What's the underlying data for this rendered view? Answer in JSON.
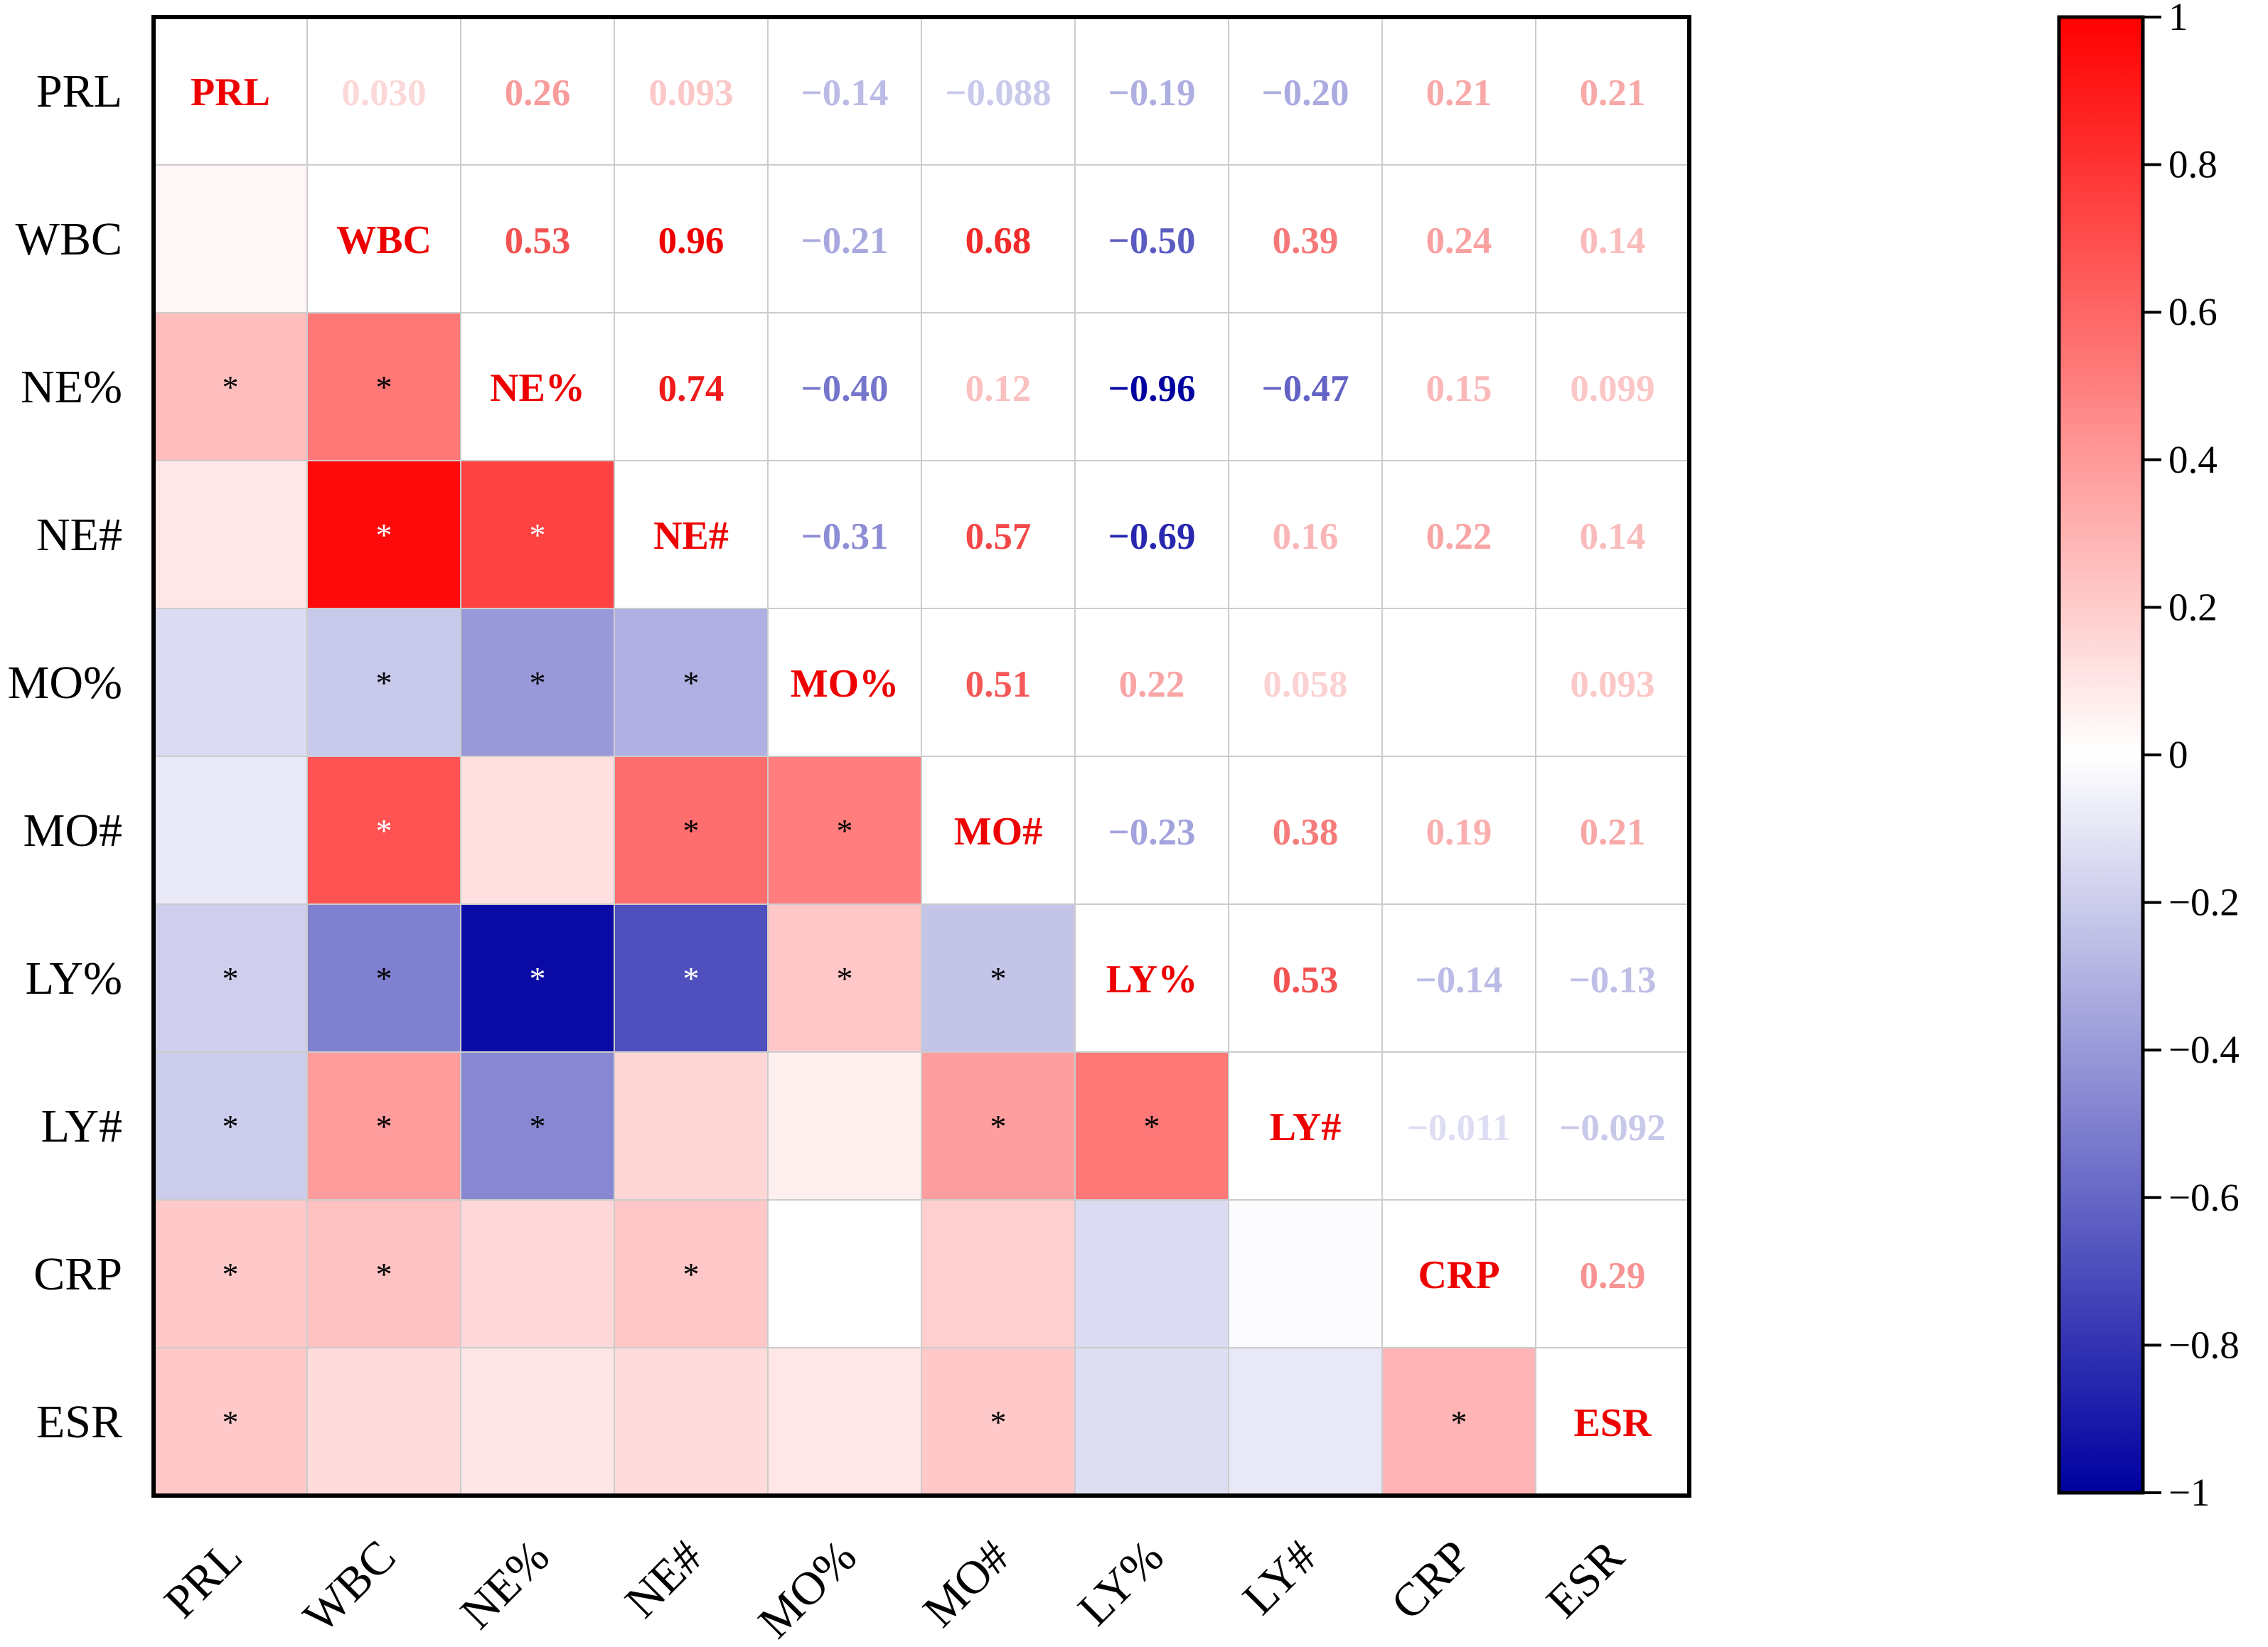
{
  "chart_data": {
    "type": "heatmap",
    "title": "",
    "variables": [
      "PRL",
      "WBC",
      "NE%",
      "NE#",
      "MO%",
      "MO#",
      "LY%",
      "LY#",
      "CRP",
      "ESR"
    ],
    "matrix": [
      [
        1,
        0.03,
        0.26,
        0.093,
        -0.14,
        -0.088,
        -0.19,
        -0.2,
        0.21,
        0.21
      ],
      [
        0.03,
        1,
        0.53,
        0.96,
        -0.21,
        0.68,
        -0.5,
        0.39,
        0.24,
        0.14
      ],
      [
        0.26,
        0.53,
        1,
        0.74,
        -0.4,
        0.12,
        -0.96,
        -0.47,
        0.15,
        0.099
      ],
      [
        0.093,
        0.96,
        0.74,
        1,
        -0.31,
        0.57,
        -0.69,
        0.16,
        0.22,
        0.14
      ],
      [
        -0.14,
        -0.21,
        -0.4,
        -0.31,
        1,
        0.51,
        0.22,
        0.058,
        0.0,
        0.093
      ],
      [
        -0.088,
        0.68,
        0.12,
        0.57,
        0.51,
        1,
        -0.23,
        0.38,
        0.19,
        0.21
      ],
      [
        -0.19,
        -0.5,
        -0.96,
        -0.69,
        0.22,
        -0.23,
        1,
        0.53,
        -0.14,
        -0.13
      ],
      [
        -0.2,
        0.39,
        -0.47,
        0.16,
        0.058,
        0.38,
        0.53,
        1,
        -0.011,
        -0.092
      ],
      [
        0.21,
        0.24,
        0.15,
        0.22,
        0.0,
        0.19,
        -0.14,
        -0.011,
        1,
        0.29
      ],
      [
        0.21,
        0.14,
        0.099,
        0.14,
        0.093,
        0.21,
        -0.13,
        -0.092,
        0.29,
        1
      ]
    ],
    "upper_labels": [
      [
        "PRL",
        "0.030",
        "0.26",
        "0.093",
        "-0.14",
        "-0.088",
        "-0.19",
        "-0.20",
        "0.21",
        "0.21"
      ],
      [
        "",
        "WBC",
        "0.53",
        "0.96",
        "-0.21",
        "0.68",
        "-0.50",
        "0.39",
        "0.24",
        "0.14"
      ],
      [
        "",
        "",
        "NE%",
        "0.74",
        "-0.40",
        "0.12",
        "-0.96",
        "-0.47",
        "0.15",
        "0.099"
      ],
      [
        "",
        "",
        "",
        "NE#",
        "-0.31",
        "0.57",
        "-0.69",
        "0.16",
        "0.22",
        "0.14"
      ],
      [
        "",
        "",
        "",
        "",
        "MO%",
        "0.51",
        "0.22",
        "0.058",
        "",
        "0.093"
      ],
      [
        "",
        "",
        "",
        "",
        "",
        "MO#",
        "-0.23",
        "0.38",
        "0.19",
        "0.21"
      ],
      [
        "",
        "",
        "",
        "",
        "",
        "",
        "LY%",
        "0.53",
        "-0.14",
        "-0.13"
      ],
      [
        "",
        "",
        "",
        "",
        "",
        "",
        "",
        "LY#",
        "-0.011",
        "-0.092"
      ],
      [
        "",
        "",
        "",
        "",
        "",
        "",
        "",
        "",
        "CRP",
        "0.29"
      ],
      [
        "",
        "",
        "",
        "",
        "",
        "",
        "",
        "",
        "",
        "ESR"
      ]
    ],
    "significance_mark": "*",
    "significant_lower": [
      [],
      [],
      [
        0,
        1
      ],
      [
        1,
        2
      ],
      [
        1,
        2,
        3
      ],
      [
        1,
        3,
        4
      ],
      [
        0,
        1,
        2,
        3,
        4,
        5
      ],
      [
        0,
        1,
        2,
        5,
        6
      ],
      [
        0,
        1,
        3
      ],
      [
        0,
        5,
        8
      ]
    ],
    "colorbar": {
      "min": -1,
      "max": 1,
      "ticks": [
        1,
        0.8,
        0.6,
        0.4,
        0.2,
        0,
        -0.2,
        -0.4,
        -0.6,
        -0.8,
        -1
      ],
      "tick_labels": [
        "1",
        "0.8",
        "0.6",
        "0.4",
        "0.2",
        "0",
        "−0.2",
        "−0.4",
        "−0.6",
        "−0.8",
        "−1"
      ],
      "positive_color": "#ff0000",
      "neutral_color": "#ffffff",
      "negative_color": "#0000a0"
    }
  }
}
